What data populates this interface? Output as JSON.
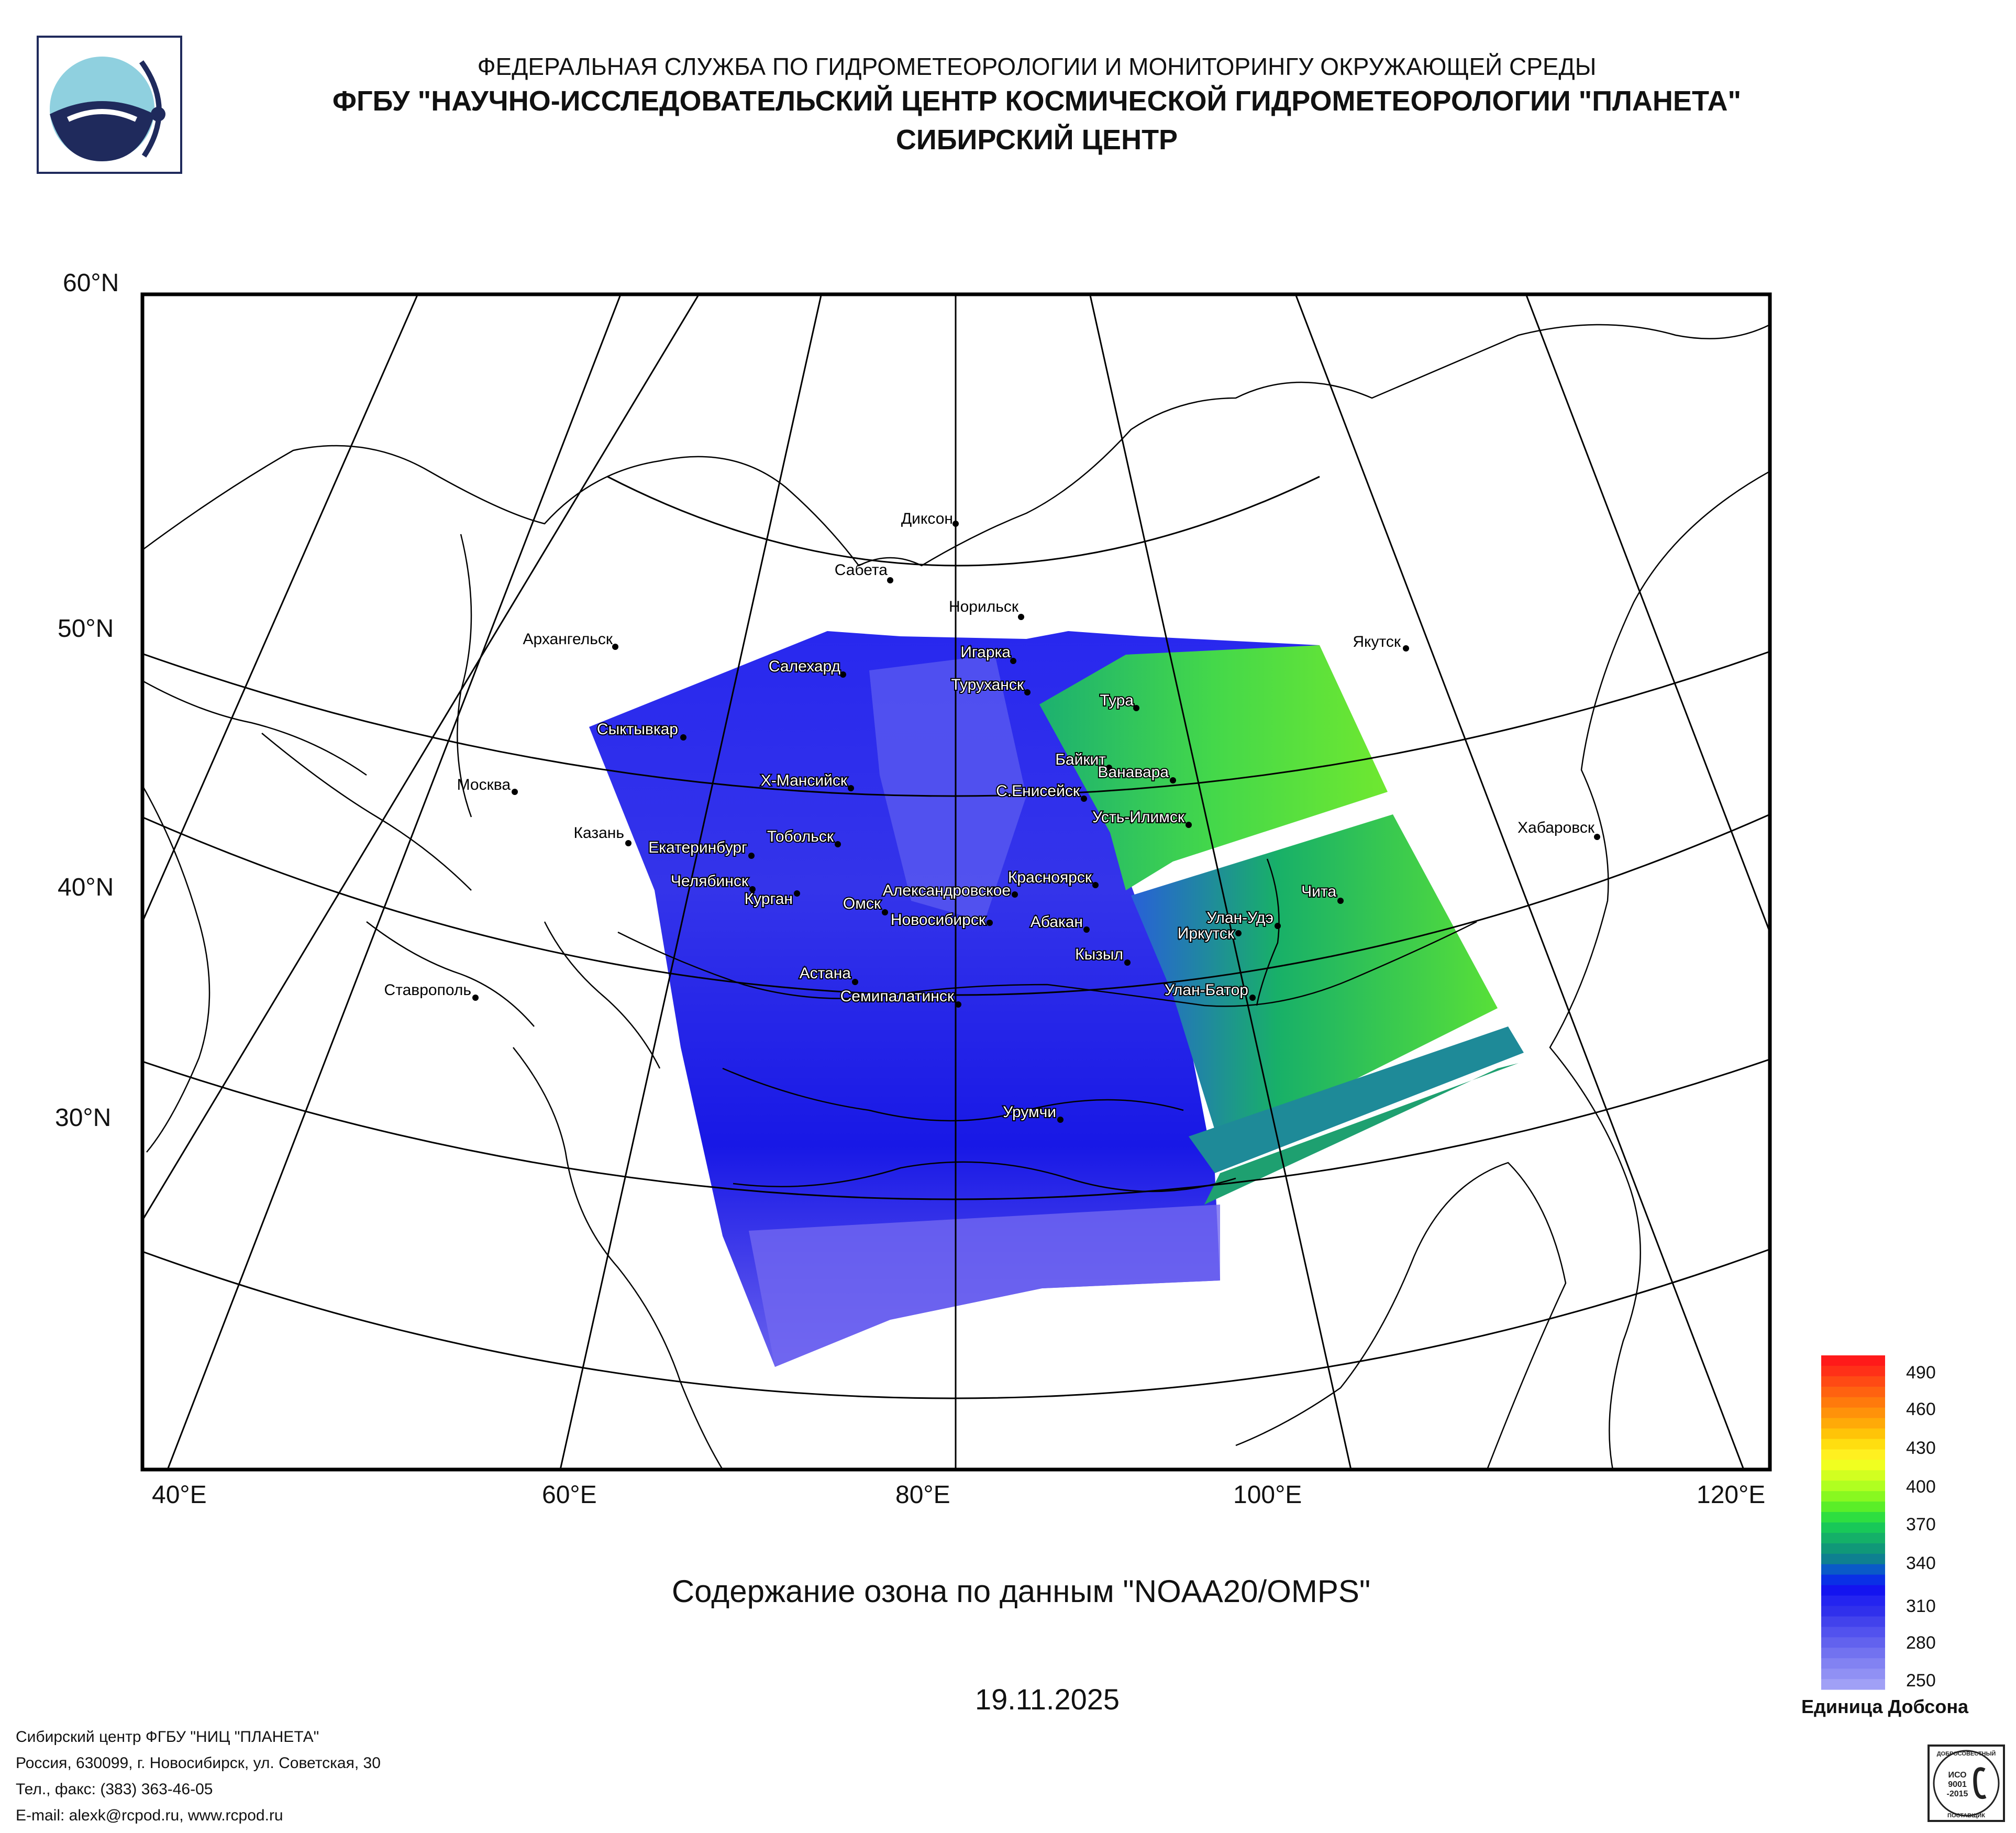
{
  "header": {
    "line1": "ФЕДЕРАЛЬНАЯ СЛУЖБА ПО ГИДРОМЕТЕОРОЛОГИИ И МОНИТОРИНГУ ОКРУЖАЮЩЕЙ СРЕДЫ",
    "line2": "ФГБУ \"НАУЧНО-ИССЛЕДОВАТЕЛЬСКИЙ ЦЕНТР КОСМИЧЕСКОЙ ГИДРОМЕТЕОРОЛОГИИ \"ПЛАНЕТА\"",
    "line3": "СИБИРСКИЙ ЦЕНТР"
  },
  "map": {
    "lat_labels": [
      "60°N",
      "50°N",
      "40°N",
      "30°N"
    ],
    "lon_labels": [
      "40°E",
      "60°E",
      "80°E",
      "100°E",
      "120°E"
    ],
    "cities": [
      {
        "name": "Диксон"
      },
      {
        "name": "Сабета"
      },
      {
        "name": "Норильск"
      },
      {
        "name": "Якутск"
      },
      {
        "name": "Архангельск"
      },
      {
        "name": "Игарка"
      },
      {
        "name": "Салехард"
      },
      {
        "name": "Туруханск"
      },
      {
        "name": "Тура"
      },
      {
        "name": "Сыктывкар"
      },
      {
        "name": "Байкит"
      },
      {
        "name": "Ванавара"
      },
      {
        "name": "Х-Мансийск"
      },
      {
        "name": "Москва"
      },
      {
        "name": "С.Енисейск"
      },
      {
        "name": "Усть-Илимск"
      },
      {
        "name": "Хабаровск"
      },
      {
        "name": "Казань"
      },
      {
        "name": "Тобольск"
      },
      {
        "name": "Екатеринбург"
      },
      {
        "name": "Челябинск"
      },
      {
        "name": "Красноярск"
      },
      {
        "name": "Чита"
      },
      {
        "name": "Курган"
      },
      {
        "name": "Александровское"
      },
      {
        "name": "Омск"
      },
      {
        "name": "Улан-Удэ"
      },
      {
        "name": "Новосибирск"
      },
      {
        "name": "Абакан"
      },
      {
        "name": "Иркутск"
      },
      {
        "name": "Кызыл"
      },
      {
        "name": "Астана"
      },
      {
        "name": "Ставрополь"
      },
      {
        "name": "Улан-Батор"
      },
      {
        "name": "Семипалатинск"
      },
      {
        "name": "Урумчи"
      }
    ]
  },
  "colorbar": {
    "ticks": [
      "490",
      "460",
      "430",
      "400",
      "370",
      "340",
      "310",
      "280",
      "250"
    ],
    "unit": "Единица Добсона",
    "colors": [
      "#ff1a1a",
      "#ff3018",
      "#ff4a14",
      "#ff6210",
      "#ff7a0c",
      "#ff920a",
      "#ffaa08",
      "#ffc408",
      "#ffde10",
      "#fff020",
      "#f0ff20",
      "#d2ff20",
      "#b0ff20",
      "#88f820",
      "#5aee28",
      "#2ede40",
      "#18c858",
      "#14b068",
      "#109878",
      "#0e8090",
      "#0a5ac8",
      "#0a30e6",
      "#1414f0",
      "#2424f0",
      "#3030ec",
      "#4242ec",
      "#5252ee",
      "#6262ee",
      "#7272f0",
      "#8282f2",
      "#9090f4",
      "#a0a0f6"
    ]
  },
  "caption": "Содержание озона по данным \"NOAA20/OMPS\"",
  "date": "19.11.2025",
  "footer": {
    "line1": "Сибирский центр ФГБУ \"НИЦ \"ПЛАНЕТА\"",
    "line2": "Россия, 630099, г. Новосибирск, ул. Советская, 30",
    "line3": "Тел., факс: (383) 363-46-05",
    "line4": "E-mail: alexk@rcpod.ru, www.rcpod.ru"
  },
  "iso_badge": {
    "top_text": "ДОБРОСОВЕСТНЫЙ",
    "standard": "ИСО",
    "number": "9001",
    "year": "-2015",
    "bottom_text": "ПОСТАВЩИК"
  }
}
